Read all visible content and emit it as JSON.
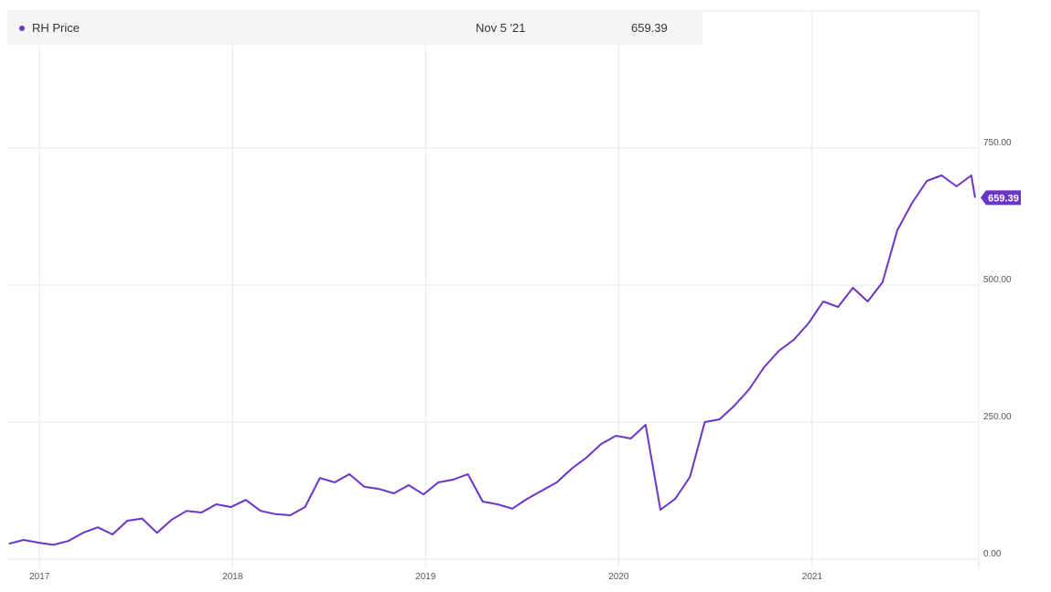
{
  "legend": {
    "series_name": "RH Price",
    "date": "Nov 5 '21",
    "value": "659.39"
  },
  "colors": {
    "series": "#6a35c9",
    "grid": "#e6e6e6",
    "legend_bg": "#f5f5f5"
  },
  "chart_data": {
    "type": "line",
    "title": "",
    "xlabel": "",
    "ylabel": "",
    "ylim": [
      0,
      1000
    ],
    "y_ticks": [
      "0.00",
      "250.00",
      "500.00",
      "750.00"
    ],
    "x_ticks": [
      "2017",
      "2018",
      "2019",
      "2020",
      "2021"
    ],
    "last_value_label": "659.39",
    "grid": true,
    "series": [
      {
        "name": "RH Price",
        "x": [
          "2016-11-04",
          "2016-12-02",
          "2016-12-30",
          "2017-01-27",
          "2017-02-24",
          "2017-03-24",
          "2017-04-21",
          "2017-05-19",
          "2017-06-16",
          "2017-07-14",
          "2017-08-11",
          "2017-09-08",
          "2017-10-06",
          "2017-11-03",
          "2017-12-01",
          "2017-12-29",
          "2018-01-26",
          "2018-02-23",
          "2018-03-23",
          "2018-04-20",
          "2018-05-18",
          "2018-06-15",
          "2018-07-13",
          "2018-08-10",
          "2018-09-07",
          "2018-10-05",
          "2018-11-02",
          "2018-11-30",
          "2018-12-28",
          "2019-01-25",
          "2019-02-22",
          "2019-03-22",
          "2019-04-19",
          "2019-05-17",
          "2019-06-14",
          "2019-07-12",
          "2019-08-09",
          "2019-09-06",
          "2019-10-04",
          "2019-11-01",
          "2019-11-29",
          "2019-12-27",
          "2020-01-24",
          "2020-02-21",
          "2020-03-20",
          "2020-04-17",
          "2020-05-15",
          "2020-06-12",
          "2020-07-10",
          "2020-08-07",
          "2020-09-04",
          "2020-10-02",
          "2020-10-30",
          "2020-11-27",
          "2020-12-25",
          "2021-01-22",
          "2021-02-19",
          "2021-03-19",
          "2021-04-16",
          "2021-05-14",
          "2021-06-11",
          "2021-07-09",
          "2021-08-06",
          "2021-09-03",
          "2021-10-01",
          "2021-10-29",
          "2021-11-05"
        ],
        "values": [
          28,
          35,
          30,
          26,
          33,
          48,
          58,
          45,
          70,
          74,
          48,
          72,
          88,
          85,
          100,
          95,
          108,
          88,
          82,
          80,
          95,
          148,
          140,
          155,
          132,
          128,
          120,
          135,
          118,
          140,
          145,
          155,
          105,
          100,
          92,
          110,
          125,
          140,
          165,
          185,
          210,
          225,
          220,
          245,
          90,
          110,
          150,
          250,
          255,
          280,
          310,
          350,
          380,
          400,
          430,
          470,
          460,
          495,
          470,
          505,
          600,
          650,
          690,
          700,
          680,
          700,
          659.39
        ]
      }
    ]
  }
}
